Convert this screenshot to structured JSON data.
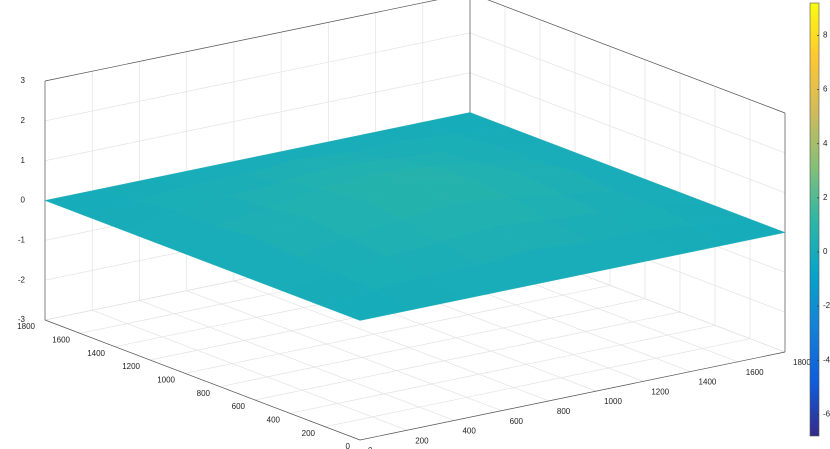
{
  "chart_data": {
    "type": "surface",
    "x": [
      0,
      225,
      450,
      675,
      900,
      1125,
      1350,
      1575,
      1800
    ],
    "y": [
      0,
      225,
      450,
      675,
      900,
      1125,
      1350,
      1575,
      1800
    ],
    "z": [
      [
        0,
        0,
        0,
        0,
        0,
        0,
        0,
        0,
        0
      ],
      [
        0,
        0.1,
        0.2,
        0.2,
        0.3,
        0.2,
        0.2,
        0.1,
        0
      ],
      [
        0,
        0.2,
        0.3,
        0.4,
        0.5,
        0.4,
        0.3,
        0.2,
        0
      ],
      [
        0,
        0.2,
        0.4,
        0.6,
        0.7,
        0.6,
        0.4,
        0.2,
        0
      ],
      [
        0,
        0.3,
        0.5,
        0.7,
        0.9,
        0.7,
        0.5,
        0.3,
        0
      ],
      [
        0,
        0.2,
        0.4,
        0.6,
        0.7,
        0.6,
        0.4,
        0.2,
        0
      ],
      [
        0,
        0.2,
        0.3,
        0.4,
        0.5,
        0.4,
        0.3,
        0.2,
        0
      ],
      [
        0,
        0.1,
        0.2,
        0.2,
        0.3,
        0.2,
        0.2,
        0.1,
        0
      ],
      [
        0,
        0,
        0,
        0,
        0,
        0,
        0,
        0,
        0
      ]
    ],
    "xlim": [
      0,
      1800
    ],
    "ylim": [
      0,
      1800
    ],
    "zlim": [
      -3,
      3
    ],
    "xticks": [
      0,
      200,
      400,
      600,
      800,
      1000,
      1200,
      1400,
      1600,
      1800
    ],
    "yticks": [
      0,
      200,
      400,
      600,
      800,
      1000,
      1200,
      1400,
      1600,
      1800
    ],
    "zticks": [
      -3,
      -2,
      -1,
      0,
      1,
      2,
      3
    ],
    "clim": [
      -6.8,
      9.2
    ],
    "cticks": [
      -6,
      -4,
      -2,
      0,
      2,
      4,
      6,
      8
    ],
    "colormap": [
      "#352a87",
      "#0f5cdd",
      "#1481d6",
      "#06a4ca",
      "#2eb7a4",
      "#87bf77",
      "#d1bb59",
      "#fec832",
      "#f9fb0e"
    ],
    "grid": true
  }
}
